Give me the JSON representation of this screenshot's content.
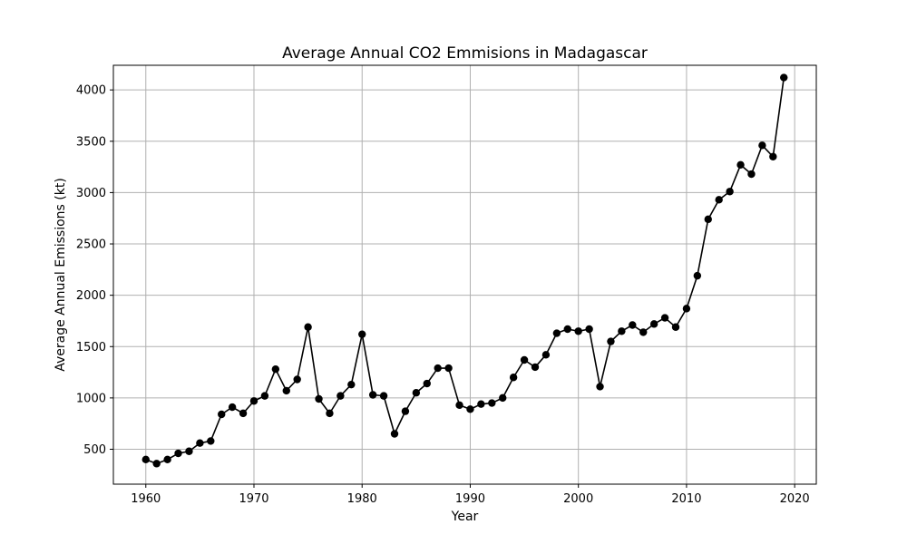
{
  "chart_data": {
    "type": "line",
    "title": "Average Annual CO2 Emmisions in Madagascar",
    "xlabel": "Year",
    "ylabel": "Average Annual Emissions (kt)",
    "xlim": [
      1957,
      2022
    ],
    "ylim": [
      160,
      4240
    ],
    "xticks": [
      1960,
      1970,
      1980,
      1990,
      2000,
      2010,
      2020
    ],
    "yticks": [
      500,
      1000,
      1500,
      2000,
      2500,
      3000,
      3500,
      4000
    ],
    "grid": true,
    "markers": true,
    "line_color": "#000000",
    "grid_color": "#b0b0b0",
    "series": [
      {
        "x": [
          1960,
          1961,
          1962,
          1963,
          1964,
          1965,
          1966,
          1967,
          1968,
          1969,
          1970,
          1971,
          1972,
          1973,
          1974,
          1975,
          1976,
          1977,
          1978,
          1979,
          1980,
          1981,
          1982,
          1983,
          1984,
          1985,
          1986,
          1987,
          1988,
          1989,
          1990,
          1991,
          1992,
          1993,
          1994,
          1995,
          1996,
          1997,
          1998,
          1999,
          2000,
          2001,
          2002,
          2003,
          2004,
          2005,
          2006,
          2007,
          2008,
          2009,
          2010,
          2011,
          2012,
          2013,
          2014,
          2015,
          2016,
          2017,
          2018,
          2019
        ],
        "values": [
          400,
          360,
          400,
          460,
          480,
          560,
          580,
          840,
          910,
          850,
          970,
          1020,
          1280,
          1070,
          1180,
          1690,
          990,
          850,
          1020,
          1130,
          1620,
          1030,
          1020,
          650,
          870,
          1050,
          1140,
          1290,
          1290,
          930,
          890,
          940,
          950,
          1000,
          1200,
          1370,
          1300,
          1420,
          1630,
          1670,
          1650,
          1670,
          1110,
          1550,
          1650,
          1710,
          1640,
          1720,
          1780,
          1690,
          1870,
          2190,
          2740,
          2930,
          3010,
          3270,
          3180,
          3460,
          3350,
          4120
        ]
      }
    ]
  }
}
